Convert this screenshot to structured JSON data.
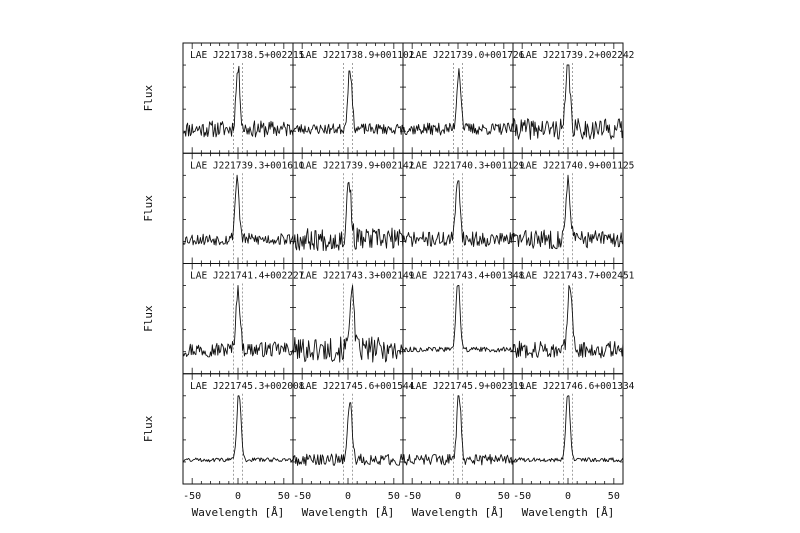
{
  "chart_data": {
    "type": "line",
    "layout": "4x4 grid of panels with shared axes",
    "xlabel": "Wavelength [Å]",
    "ylabel": "Flux",
    "xlim": [
      -60,
      60
    ],
    "xticks": [
      -50,
      0,
      50
    ],
    "xtick_labels": [
      "-50",
      "0",
      "50"
    ],
    "reference_lines": [
      -5,
      5
    ],
    "y_tick_labels": false,
    "panels": [
      {
        "title": "LAE J221738.5+002215",
        "peak_x": 0,
        "peak_height": 0.7,
        "noise": 0.28,
        "seed": 11
      },
      {
        "title": "LAE J221738.9+001102",
        "peak_x": 2,
        "peak_height": 0.72,
        "noise": 0.18,
        "seed": 23
      },
      {
        "title": "LAE J221739.0+001726",
        "peak_x": 1,
        "peak_height": 0.7,
        "noise": 0.2,
        "seed": 37
      },
      {
        "title": "LAE J221739.2+002242",
        "peak_x": 0,
        "peak_height": 0.78,
        "noise": 0.35,
        "seed": 41
      },
      {
        "title": "LAE J221739.3+001610",
        "peak_x": -1,
        "peak_height": 0.72,
        "noise": 0.2,
        "seed": 53
      },
      {
        "title": "LAE J221739.9+002142",
        "peak_x": 1,
        "peak_height": 0.72,
        "noise": 0.38,
        "seed": 67
      },
      {
        "title": "LAE J221740.3+001129",
        "peak_x": 0,
        "peak_height": 0.75,
        "noise": 0.25,
        "seed": 71
      },
      {
        "title": "LAE J221740.9+001125",
        "peak_x": 0,
        "peak_height": 0.75,
        "noise": 0.32,
        "seed": 83
      },
      {
        "title": "LAE J221741.4+002227",
        "peak_x": 0,
        "peak_height": 0.72,
        "noise": 0.25,
        "seed": 97
      },
      {
        "title": "LAE J221743.3+002149",
        "peak_x": 4,
        "peak_height": 0.75,
        "noise": 0.42,
        "seed": 101
      },
      {
        "title": "LAE J221743.4+001348",
        "peak_x": 0,
        "peak_height": 0.82,
        "noise": 0.08,
        "seed": 113
      },
      {
        "title": "LAE J221743.7+002451",
        "peak_x": 2,
        "peak_height": 0.8,
        "noise": 0.28,
        "seed": 127
      },
      {
        "title": "LAE J221745.3+002008",
        "peak_x": 1,
        "peak_height": 0.8,
        "noise": 0.07,
        "seed": 131
      },
      {
        "title": "LAE J221745.6+001544",
        "peak_x": 2,
        "peak_height": 0.72,
        "noise": 0.2,
        "seed": 149
      },
      {
        "title": "LAE J221745.9+002319",
        "peak_x": 1,
        "peak_height": 0.78,
        "noise": 0.18,
        "seed": 151
      },
      {
        "title": "LAE J221746.6+001334",
        "peak_x": 0,
        "peak_height": 0.8,
        "noise": 0.07,
        "seed": 163
      }
    ]
  }
}
